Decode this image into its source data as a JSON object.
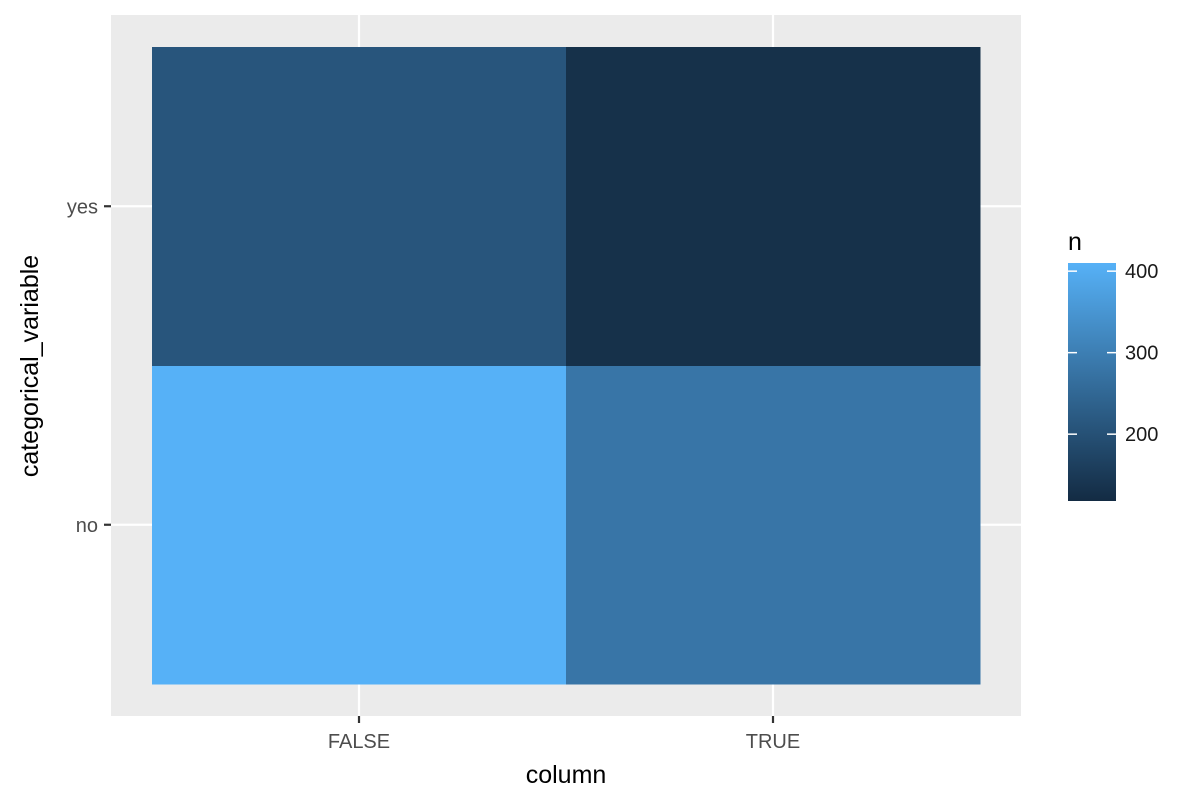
{
  "chart_data": {
    "type": "heatmap",
    "title": "",
    "xlabel": "column",
    "ylabel": "categorical_variable",
    "x_categories": [
      "FALSE",
      "TRUE"
    ],
    "y_categories": [
      "no",
      "yes"
    ],
    "cells": [
      {
        "x": "FALSE",
        "y": "no",
        "n": 410
      },
      {
        "x": "TRUE",
        "y": "no",
        "n": 280
      },
      {
        "x": "FALSE",
        "y": "yes",
        "n": 210
      },
      {
        "x": "TRUE",
        "y": "yes",
        "n": 130
      }
    ],
    "fill": {
      "name": "n",
      "limits": [
        118,
        410
      ],
      "low_color": "#132B43",
      "high_color": "#56B1F7",
      "breaks": [
        200,
        300,
        400
      ]
    },
    "grid": true,
    "legend_position": "right"
  }
}
